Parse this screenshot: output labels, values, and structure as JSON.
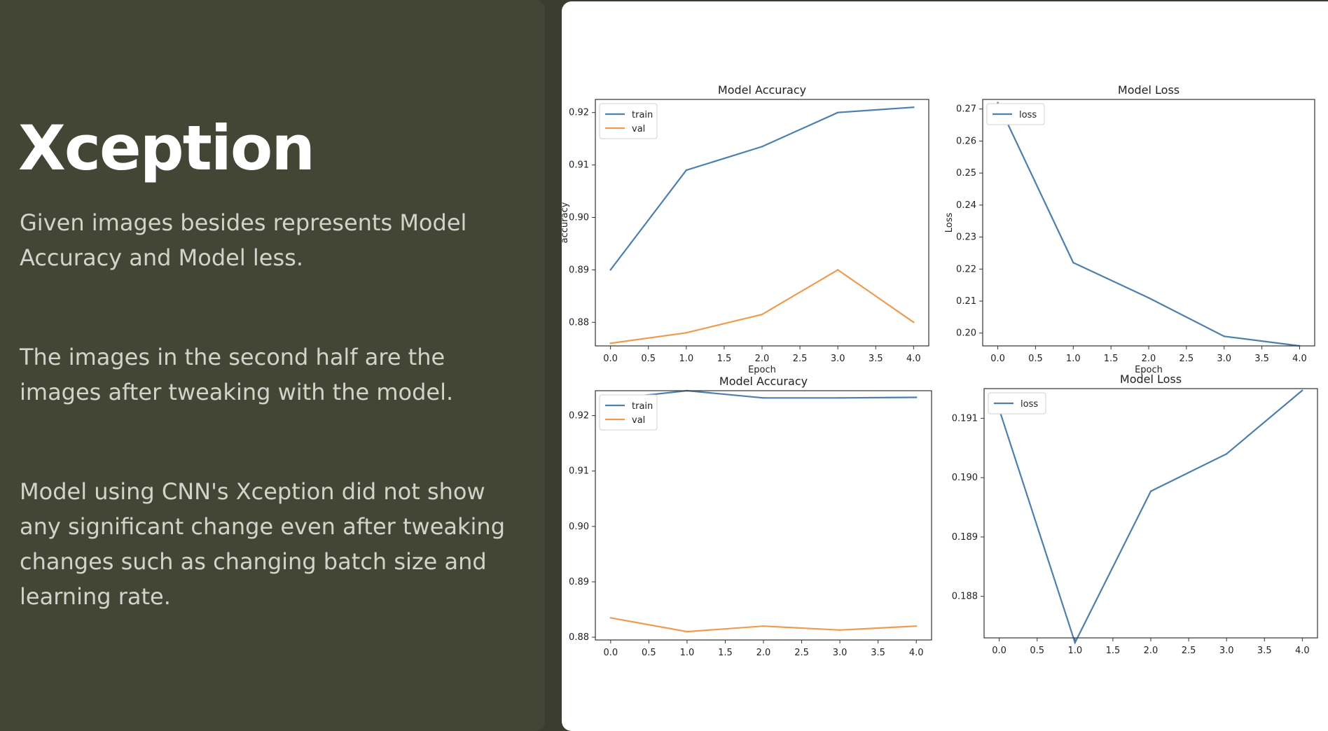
{
  "slide": {
    "title": "Xception",
    "paragraphs": [
      "Given images besides represents Model Accuracy and Model less.",
      "The images in the second half are the images after tweaking with the model.",
      "Model using CNN's Xception did not show any significant change even after tweaking changes such as changing batch size and learning rate."
    ]
  },
  "colors": {
    "train": "#4c7fb0",
    "val": "#ee9a4f",
    "loss": "#4c7fb0",
    "panel": "#444635",
    "text": "#d3d3cb"
  },
  "chart_data": [
    {
      "type": "line",
      "title": "Model Accuracy",
      "xlabel": "Epoch",
      "ylabel": "accuracy",
      "x": [
        0,
        1,
        2,
        3,
        4
      ],
      "xticks": [
        "0.0",
        "0.5",
        "1.0",
        "1.5",
        "2.0",
        "2.5",
        "3.0",
        "3.5",
        "4.0"
      ],
      "yticks": [
        "0.88",
        "0.89",
        "0.90",
        "0.91",
        "0.92"
      ],
      "ylim": [
        0.8755,
        0.9225
      ],
      "legend": "upper-left",
      "series": [
        {
          "name": "train",
          "values": [
            0.89,
            0.909,
            0.9135,
            0.92,
            0.921
          ]
        },
        {
          "name": "val",
          "values": [
            0.876,
            0.878,
            0.8815,
            0.89,
            0.88
          ]
        }
      ]
    },
    {
      "type": "line",
      "title": "Model Loss",
      "xlabel": "Epoch",
      "ylabel": "Loss",
      "x": [
        0,
        1,
        2,
        3,
        4
      ],
      "xticks": [
        "0.0",
        "0.5",
        "1.0",
        "1.5",
        "2.0",
        "2.5",
        "3.0",
        "3.5",
        "4.0"
      ],
      "yticks": [
        "0.20",
        "0.21",
        "0.22",
        "0.23",
        "0.24",
        "0.25",
        "0.26",
        "0.27"
      ],
      "ylim": [
        0.196,
        0.273
      ],
      "legend": "upper-left",
      "series": [
        {
          "name": "loss",
          "values": [
            0.272,
            0.222,
            0.211,
            0.199,
            0.196
          ]
        }
      ]
    },
    {
      "type": "line",
      "title": "Model Accuracy",
      "xlabel": "",
      "ylabel": "",
      "x": [
        0,
        1,
        2,
        3,
        4
      ],
      "xticks": [
        "0.0",
        "0.5",
        "1.0",
        "1.5",
        "2.0",
        "2.5",
        "3.0",
        "3.5",
        "4.0"
      ],
      "yticks": [
        "0.88",
        "0.89",
        "0.90",
        "0.91",
        "0.92"
      ],
      "ylim": [
        0.8795,
        0.9245
      ],
      "legend": "upper-left",
      "series": [
        {
          "name": "train",
          "values": [
            0.923,
            0.9245,
            0.9232,
            0.9232,
            0.9233
          ]
        },
        {
          "name": "val",
          "values": [
            0.8835,
            0.881,
            0.882,
            0.8813,
            0.882
          ]
        }
      ]
    },
    {
      "type": "line",
      "title": "Model Loss",
      "xlabel": "",
      "ylabel": "",
      "x": [
        0,
        1,
        2,
        3,
        4
      ],
      "xticks": [
        "0.0",
        "0.5",
        "1.0",
        "1.5",
        "2.0",
        "2.5",
        "3.0",
        "3.5",
        "4.0"
      ],
      "yticks": [
        "0.188",
        "0.189",
        "0.190",
        "0.191"
      ],
      "ylim": [
        0.1873,
        0.1915
      ],
      "legend": "upper-left",
      "series": [
        {
          "name": "loss",
          "values": [
            0.19115,
            0.18722,
            0.18977,
            0.1904,
            0.19147
          ]
        }
      ]
    }
  ]
}
